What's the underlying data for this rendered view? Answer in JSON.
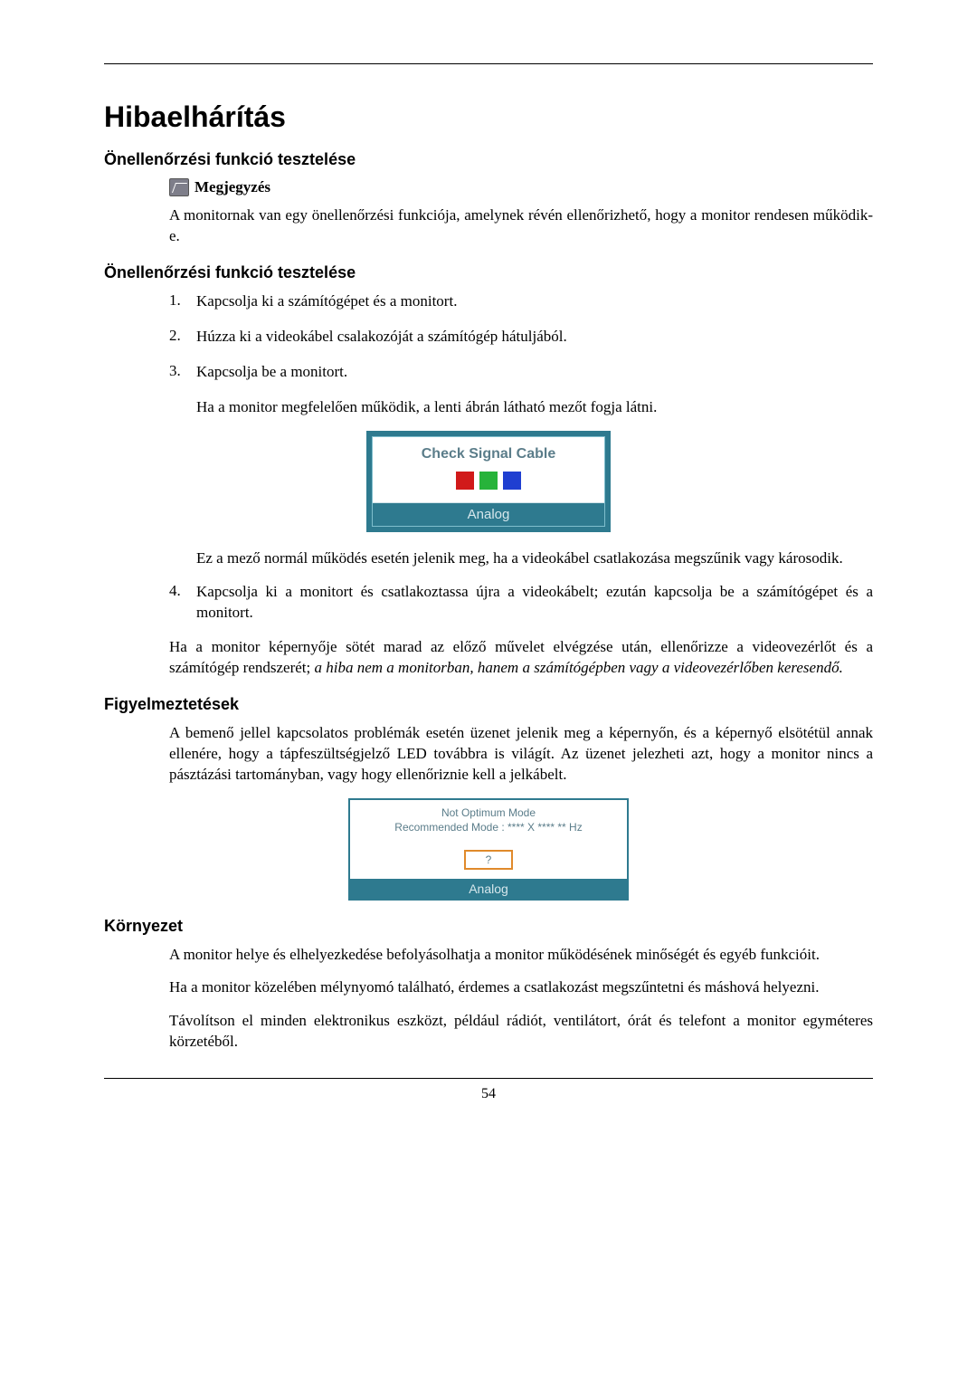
{
  "page": {
    "title": "Hibaelhárítás",
    "number": "54"
  },
  "section1": {
    "heading": "Önellenőrzési funkció tesztelése",
    "note_label": "Megjegyzés",
    "note_text": "A monitornak van egy önellenőrzési funkciója, amelynek révén ellenőrizhető, hogy a monitor rendesen működik-e."
  },
  "section2": {
    "heading": "Önellenőrzési funkció tesztelése",
    "steps": {
      "s1": "Kapcsolja ki a számítógépet és a monitort.",
      "s2": "Húzza ki a videokábel csalakozóját a számítógép hátuljából.",
      "s3": "Kapcsolja be a monitort.",
      "s3_follow": "Ha a monitor megfelelően működik, a lenti ábrán látható mezőt fogja látni.",
      "s3_after": "Ez a mező normál működés esetén jelenik meg, ha a videokábel csatlakozása megszűnik vagy károsodik.",
      "s4": "Kapcsolja ki a monitort és csatlakoztassa újra a videokábelt; ezután kapcsolja be a számítógépet és a monitort."
    },
    "tail_plain": "Ha a monitor képernyője sötét marad az előző művelet elvégzése után, ellenőrizze a videovezérlőt és a számítógép rendszerét; ",
    "tail_italic": "a hiba nem a monitorban, hanem a számítógépben vagy a videovezérlőben keresendő."
  },
  "fig1": {
    "title": "Check Signal Cable",
    "mode": "Analog",
    "colors": {
      "r": "#d11a1a",
      "g": "#27b33a",
      "b": "#1f3fd1"
    },
    "frame": "#2e7a8f"
  },
  "section3": {
    "heading": "Figyelmeztetések",
    "text": "A bemenő jellel kapcsolatos problémák esetén üzenet jelenik meg a képernyőn, és a képernyő elsötétül annak ellenére, hogy a tápfeszültségjelző LED továbbra is világít. Az üzenet jelezheti azt, hogy a monitor nincs a pásztázási tartományban, vagy hogy ellenőriznie kell a jelkábelt."
  },
  "fig2": {
    "line1": "Not Optimum Mode",
    "line2": "Recommended Mode : **** X **** ** Hz",
    "button": "?",
    "mode": "Analog",
    "frame": "#2e7a8f",
    "btn_border": "#e08a2b"
  },
  "section4": {
    "heading": "Környezet",
    "p1": "A monitor helye és elhelyezkedése befolyásolhatja a monitor működésének minőségét és egyéb funkcióit.",
    "p2": "Ha a monitor közelében mélynyomó található, érdemes a csatlakozást megszűntetni és máshová helyezni.",
    "p3": "Távolítson el minden elektronikus eszközt, például rádiót, ventilátort, órát és telefont a monitor egyméteres körzetéből."
  }
}
